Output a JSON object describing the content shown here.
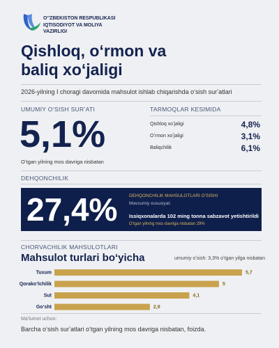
{
  "logo": [
    "Oʻ'ZBEKISTON RESPUBLIKASI",
    "IQTISODIYOT VA MOLIYA",
    "VAZIRLIGI"
  ],
  "title": [
    "Qishloq, oʻrmon va",
    "baliq xoʻjaligi"
  ],
  "subtitle": "2026-yilning I choragi davomida mahsulot ishlab chiqarishda oʻsish surʼatlari",
  "overall": {
    "heading": "UMUMIY OʻSISH SURʼATI",
    "value": "5,1%",
    "caption": "Oʻtgan yilning mos davriga nisbatan"
  },
  "sectors": {
    "heading": "TARMOQLAR KESIMIDA",
    "rows": [
      [
        "Qishloq xoʻjaligi",
        "4,8%"
      ],
      [
        "Oʻrmon xoʻjaligi",
        "3,1%"
      ],
      [
        "Baliqchilik",
        "6,1%"
      ]
    ]
  },
  "farming": {
    "heading": "DEHQONCHILIK",
    "value": "27,4%",
    "label": "DEHQONCHILIK MAHSULOTLARI OʻSISHI",
    "note": "Mavsumiy xususiyat:",
    "highlight": "Issiqxonalarda 102 ming tonna sabzavot yetishtirildi",
    "detail": "Oʻtgan yilning mos davriga nisbatan 29%"
  },
  "livestock_heading": "CHORVACHILIK MAHSULOTLARI",
  "chart_data": {
    "type": "bar",
    "orientation": "horizontal",
    "title": "Mahsulot turlari boʻyicha",
    "subtitle": "umumiy oʻsish: 3,3% oʻtgan yilga nisbatan",
    "categories": [
      "Tuxum",
      "Qorakoʻlchilik",
      "Sut",
      "Goʻsht"
    ],
    "values": [
      5.7,
      5,
      4.1,
      2.9
    ],
    "value_labels": [
      "5,7",
      "5",
      "4,1",
      "2,9"
    ],
    "color": "#c9a24e"
  },
  "footer": {
    "label": "Maʼlumot uchun:",
    "text": "Barcha oʻsish surʼatlari oʻtgan yilning mos davriga nisbatan, foizda."
  }
}
